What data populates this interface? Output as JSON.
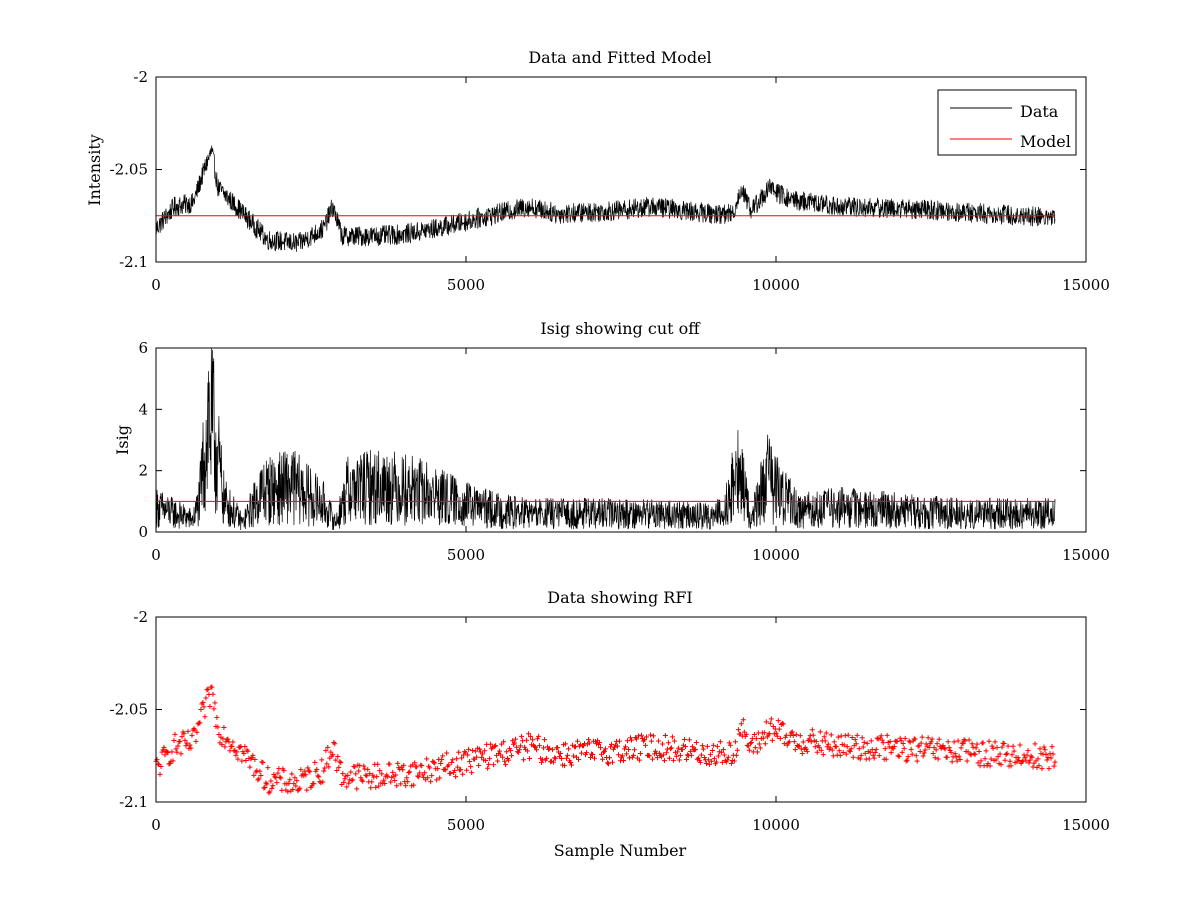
{
  "chart_data": [
    {
      "type": "line",
      "title": "Data and Fitted Model",
      "xlabel": "",
      "ylabel": "Intensity",
      "xlim": [
        0,
        15000
      ],
      "ylim": [
        -2.1,
        -2.0
      ],
      "xticks": [
        0,
        5000,
        10000,
        15000
      ],
      "xtick_labels": [
        "0",
        "5000",
        "10000",
        "15000"
      ],
      "yticks": [
        -2.1,
        -2.05,
        -2.0
      ],
      "ytick_labels": [
        "-2.1",
        "-2.05",
        "-2"
      ],
      "grid": false,
      "legend_position": "top-right",
      "series": [
        {
          "name": "Data",
          "color": "#000000",
          "x": [
            0,
            300,
            600,
            800,
            900,
            1000,
            1300,
            1800,
            2300,
            2700,
            2850,
            3000,
            3500,
            4000,
            4500,
            5000,
            5500,
            6000,
            6500,
            7000,
            7500,
            8000,
            8500,
            9000,
            9300,
            9450,
            9600,
            9900,
            10200,
            11000,
            12000,
            13000,
            14000,
            14500
          ],
          "y": [
            -2.082,
            -2.07,
            -2.068,
            -2.048,
            -2.04,
            -2.06,
            -2.07,
            -2.088,
            -2.09,
            -2.082,
            -2.07,
            -2.086,
            -2.086,
            -2.085,
            -2.082,
            -2.078,
            -2.074,
            -2.07,
            -2.074,
            -2.073,
            -2.072,
            -2.07,
            -2.072,
            -2.074,
            -2.074,
            -2.06,
            -2.072,
            -2.06,
            -2.066,
            -2.07,
            -2.071,
            -2.073,
            -2.075,
            -2.076
          ]
        },
        {
          "name": "Model",
          "color": "#ff0000",
          "x": [
            0,
            14500
          ],
          "y": [
            -2.075,
            -2.075
          ]
        }
      ]
    },
    {
      "type": "line",
      "title": "Isig showing cut off",
      "xlabel": "",
      "ylabel": "Isig",
      "xlim": [
        0,
        15000
      ],
      "ylim": [
        0,
        6
      ],
      "xticks": [
        0,
        5000,
        10000,
        15000
      ],
      "xtick_labels": [
        "0",
        "5000",
        "10000",
        "15000"
      ],
      "yticks": [
        0,
        2,
        4,
        6
      ],
      "ytick_labels": [
        "0",
        "2",
        "4",
        "6"
      ],
      "grid": false,
      "series": [
        {
          "color": "#000000",
          "x": [
            0,
            300,
            600,
            700,
            850,
            950,
            1100,
            1400,
            1700,
            2200,
            2700,
            2900,
            3100,
            3700,
            4300,
            5000,
            5500,
            6000,
            7000,
            8000,
            9000,
            9200,
            9400,
            9600,
            9850,
            10100,
            10400,
            11000,
            12000,
            13000,
            14000,
            14500
          ],
          "y": [
            0.8,
            0.6,
            0.4,
            1.0,
            3.8,
            3.0,
            1.0,
            0.3,
            1.3,
            1.5,
            0.9,
            0.3,
            1.4,
            1.5,
            1.3,
            0.9,
            0.7,
            0.6,
            0.6,
            0.6,
            0.5,
            0.9,
            2.0,
            0.4,
            1.8,
            1.2,
            0.7,
            0.8,
            0.7,
            0.6,
            0.6,
            0.6
          ]
        },
        {
          "color": "#ff0000",
          "x": [
            0,
            14500
          ],
          "y": [
            1.0,
            1.0
          ]
        }
      ]
    },
    {
      "type": "scatter",
      "title": "Data showing RFI",
      "xlabel": "Sample Number",
      "ylabel": "",
      "xlim": [
        0,
        15000
      ],
      "ylim": [
        -2.1,
        -2.0
      ],
      "xticks": [
        0,
        5000,
        10000,
        15000
      ],
      "xtick_labels": [
        "0",
        "5000",
        "10000",
        "15000"
      ],
      "yticks": [
        -2.1,
        -2.05,
        -2.0
      ],
      "ytick_labels": [
        "-2.1",
        "-2.05",
        "-2"
      ],
      "grid": false,
      "series": [
        {
          "color": "#ff0000",
          "marker": "+",
          "x": [
            0,
            300,
            600,
            800,
            900,
            1000,
            1300,
            1800,
            2300,
            2700,
            2850,
            3000,
            3500,
            4000,
            4500,
            5000,
            5500,
            6000,
            6500,
            7000,
            7500,
            8000,
            8500,
            9000,
            9300,
            9450,
            9600,
            9900,
            10200,
            11000,
            12000,
            13000,
            14000,
            14500
          ],
          "y": [
            -2.082,
            -2.07,
            -2.068,
            -2.048,
            -2.04,
            -2.06,
            -2.07,
            -2.088,
            -2.09,
            -2.082,
            -2.07,
            -2.086,
            -2.086,
            -2.085,
            -2.082,
            -2.078,
            -2.074,
            -2.07,
            -2.074,
            -2.073,
            -2.072,
            -2.07,
            -2.072,
            -2.074,
            -2.074,
            -2.06,
            -2.072,
            -2.06,
            -2.066,
            -2.07,
            -2.071,
            -2.073,
            -2.075,
            -2.076
          ]
        }
      ]
    }
  ]
}
